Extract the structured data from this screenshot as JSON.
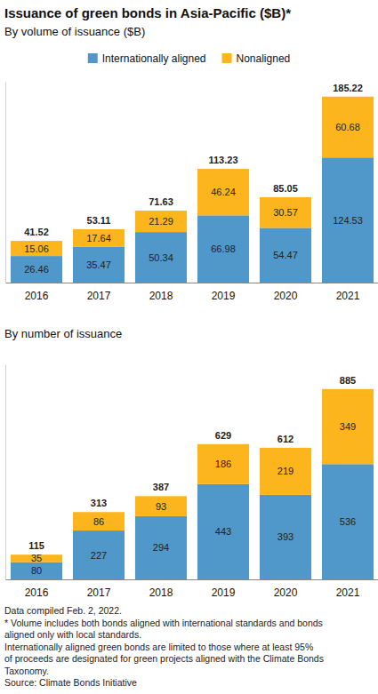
{
  "chart_data": [
    {
      "type": "bar",
      "stacked": true,
      "data_labels": true,
      "tick_labels": "x",
      "legend": "top",
      "title": "Issuance of green bonds in Asia-Pacific ($B)*",
      "subtitle": "By volume of issuance ($B)",
      "categories": [
        "2016",
        "2017",
        "2018",
        "2019",
        "2020",
        "2021"
      ],
      "series": [
        {
          "name": "Internationally aligned",
          "color": "#4f98c9",
          "values": [
            26.46,
            35.47,
            50.34,
            66.98,
            54.47,
            124.53
          ]
        },
        {
          "name": "Nonaligned",
          "color": "#fdb51e",
          "values": [
            15.06,
            17.64,
            21.29,
            46.24,
            30.57,
            60.68
          ]
        }
      ],
      "totals": [
        41.52,
        53.11,
        71.63,
        113.23,
        85.05,
        185.22
      ],
      "ylim": [
        0,
        200
      ]
    },
    {
      "type": "bar",
      "stacked": true,
      "data_labels": true,
      "tick_labels": "x",
      "subtitle": "By number of issuance",
      "categories": [
        "2016",
        "2017",
        "2018",
        "2019",
        "2020",
        "2021"
      ],
      "series": [
        {
          "color": "#4f98c9",
          "values": [
            80,
            227,
            294,
            443,
            393,
            536
          ]
        },
        {
          "color": "#fdb51e",
          "values": [
            35,
            86,
            93,
            186,
            219,
            349
          ]
        }
      ],
      "totals": [
        115,
        313,
        387,
        629,
        612,
        885
      ],
      "ylim": [
        0,
        1000
      ]
    }
  ],
  "notes": [
    "Data compiled Feb. 2, 2022.",
    "* Volume includes both bonds aligned with international standards and bonds",
    "aligned only with local standards.",
    "Internationally aligned green bonds are limited to those where at least 95%",
    "of proceeds are designated for green projects aligned with the Climate Bonds",
    "Taxonomy.",
    "Source: Climate Bonds Initiative"
  ]
}
